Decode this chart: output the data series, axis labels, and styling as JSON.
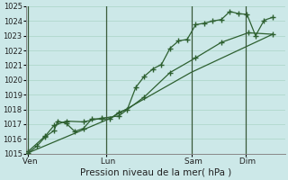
{
  "xlabel": "Pression niveau de la mer( hPa )",
  "bg_color": "#cce8e8",
  "grid_color": "#b0d8cc",
  "line_color": "#2d6030",
  "ylim": [
    1015,
    1025
  ],
  "yticks": [
    1015,
    1016,
    1017,
    1018,
    1019,
    1020,
    1021,
    1022,
    1023,
    1024,
    1025
  ],
  "day_labels": [
    " Ven",
    " Lun",
    " Sam",
    " Dim"
  ],
  "day_positions": [
    0,
    3.2,
    6.7,
    8.9
  ],
  "vline_positions": [
    0,
    3.2,
    6.7,
    8.9
  ],
  "xlim": [
    -0.1,
    10.5
  ],
  "series1_x": [
    0,
    0.35,
    0.7,
    1.05,
    1.2,
    1.55,
    1.9,
    2.25,
    2.6,
    3.0,
    3.35,
    3.7,
    4.05,
    4.4,
    4.75,
    5.1,
    5.45,
    5.8,
    6.15,
    6.5,
    6.85,
    7.2,
    7.55,
    7.9,
    8.25,
    8.6,
    8.95,
    9.3,
    9.65,
    10.0
  ],
  "series1_y": [
    1015.05,
    1015.5,
    1016.15,
    1016.55,
    1017.2,
    1017.05,
    1016.5,
    1016.7,
    1017.35,
    1017.35,
    1017.35,
    1017.8,
    1018.0,
    1019.5,
    1020.25,
    1020.75,
    1021.05,
    1022.15,
    1022.65,
    1022.75,
    1023.75,
    1023.85,
    1024.0,
    1024.1,
    1024.65,
    1024.5,
    1024.45,
    1023.0,
    1024.05,
    1024.25
  ],
  "series2_x": [
    0,
    0.7,
    1.05,
    1.55,
    2.25,
    3.0,
    3.7,
    4.75,
    5.8,
    6.85,
    7.9,
    9.0,
    10.0
  ],
  "series2_y": [
    1015.15,
    1016.2,
    1016.9,
    1017.2,
    1017.15,
    1017.4,
    1017.55,
    1018.85,
    1020.5,
    1021.5,
    1022.55,
    1023.2,
    1023.1
  ],
  "series3_x": [
    0,
    3.3,
    6.65,
    10.0
  ],
  "series3_y": [
    1015.05,
    1017.35,
    1020.5,
    1023.1
  ]
}
